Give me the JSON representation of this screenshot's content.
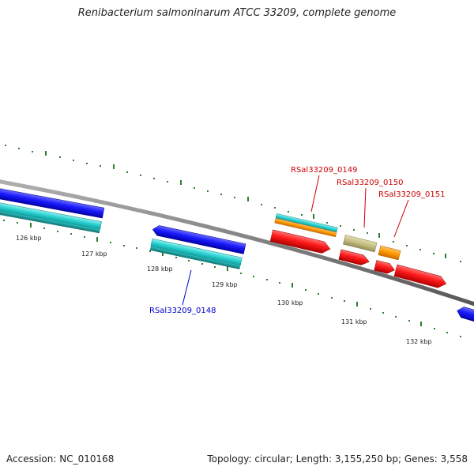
{
  "title": "Renibacterium salmoninarum ATCC 33209, complete genome",
  "footer": {
    "accession": "Accession: NC_010168",
    "topology": "Topology: circular; Length: 3,155,250 bp; Genes: 3,558"
  },
  "scale_labels": [
    "126 kbp",
    "127 kbp",
    "128 kbp",
    "129 kbp",
    "130 kbp",
    "131 kbp",
    "132 kbp"
  ],
  "gene_labels": [
    {
      "text": "RSal33209_0148",
      "color": "#0000cc"
    },
    {
      "text": "RSal33209_0149",
      "color": "#cc0000"
    },
    {
      "text": "RSal33209_0150",
      "color": "#cc0000"
    },
    {
      "text": "RSal33209_0151",
      "color": "#cc0000"
    }
  ],
  "colors": {
    "backbone": "#808080",
    "tick": "#2e7d32",
    "cds_blue": "#1a1aff",
    "cds_cyan": "#2ad1d1",
    "cds_teal": "#1e9e9e",
    "cds_red": "#ff1a1a",
    "cds_orange": "#ff9900",
    "cds_khaki": "#c4be82"
  }
}
